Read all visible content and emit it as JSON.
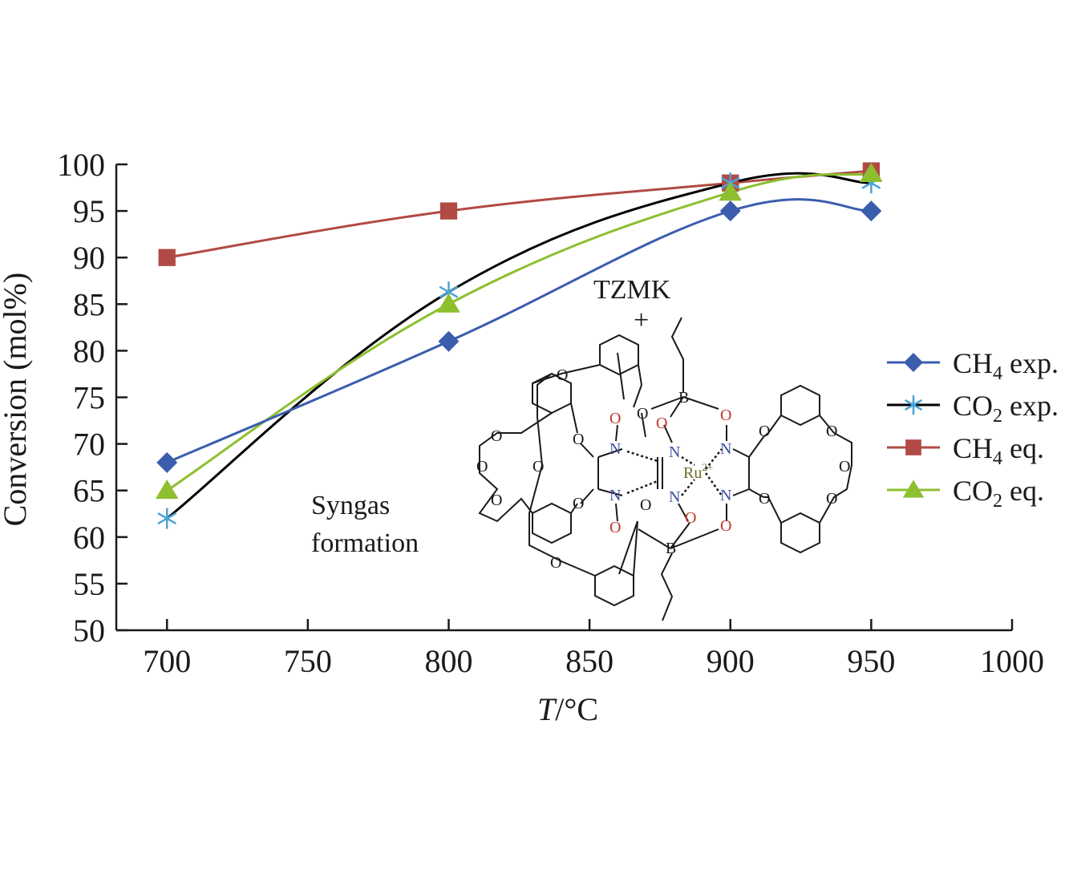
{
  "chart_data": {
    "type": "line",
    "x": [
      700,
      800,
      900,
      950
    ],
    "series": [
      {
        "name": "CH4 exp.",
        "name_base": "CH",
        "name_sub": "4",
        "name_suffix": " exp.",
        "color": "#3a5dae",
        "marker": "diamond",
        "values": [
          68,
          81,
          95,
          95
        ]
      },
      {
        "name": "CO2 exp.",
        "name_base": "CO",
        "name_sub": "2",
        "name_suffix": " exp.",
        "color": "#000000",
        "marker": "asterisk",
        "marker_color": "#4aa3d6",
        "values": [
          62,
          86.3,
          98,
          98
        ]
      },
      {
        "name": "CH4 eq.",
        "name_base": "CH",
        "name_sub": "4",
        "name_suffix": " eq.",
        "color": "#b14a44",
        "marker": "square",
        "values": [
          90,
          95,
          98,
          99.3
        ]
      },
      {
        "name": "CO2 eq.",
        "name_base": "CO",
        "name_sub": "2",
        "name_suffix": " eq.",
        "color": "#8dbf2f",
        "marker": "triangle",
        "values": [
          65,
          85,
          97,
          99
        ]
      }
    ],
    "xlabel_italic": "T",
    "xlabel_rest": "/°C",
    "ylabel": "Conversion (mol%)",
    "xlim": [
      682,
      1000
    ],
    "ylim": [
      50,
      100
    ],
    "xticks": [
      700,
      750,
      800,
      850,
      900,
      950,
      1000
    ],
    "yticks": [
      50,
      55,
      60,
      65,
      70,
      75,
      80,
      85,
      90,
      95,
      100
    ],
    "legend_position": "right",
    "grid": false
  },
  "annotations": {
    "syngas_line1": "Syngas",
    "syngas_line2": "formation",
    "catalyst_label": "TZMK",
    "plus": "+"
  },
  "molecule": {
    "metal": "Ru",
    "charge": "2+",
    "oxygen": "O",
    "nitrogen": "N",
    "boron": "B"
  }
}
